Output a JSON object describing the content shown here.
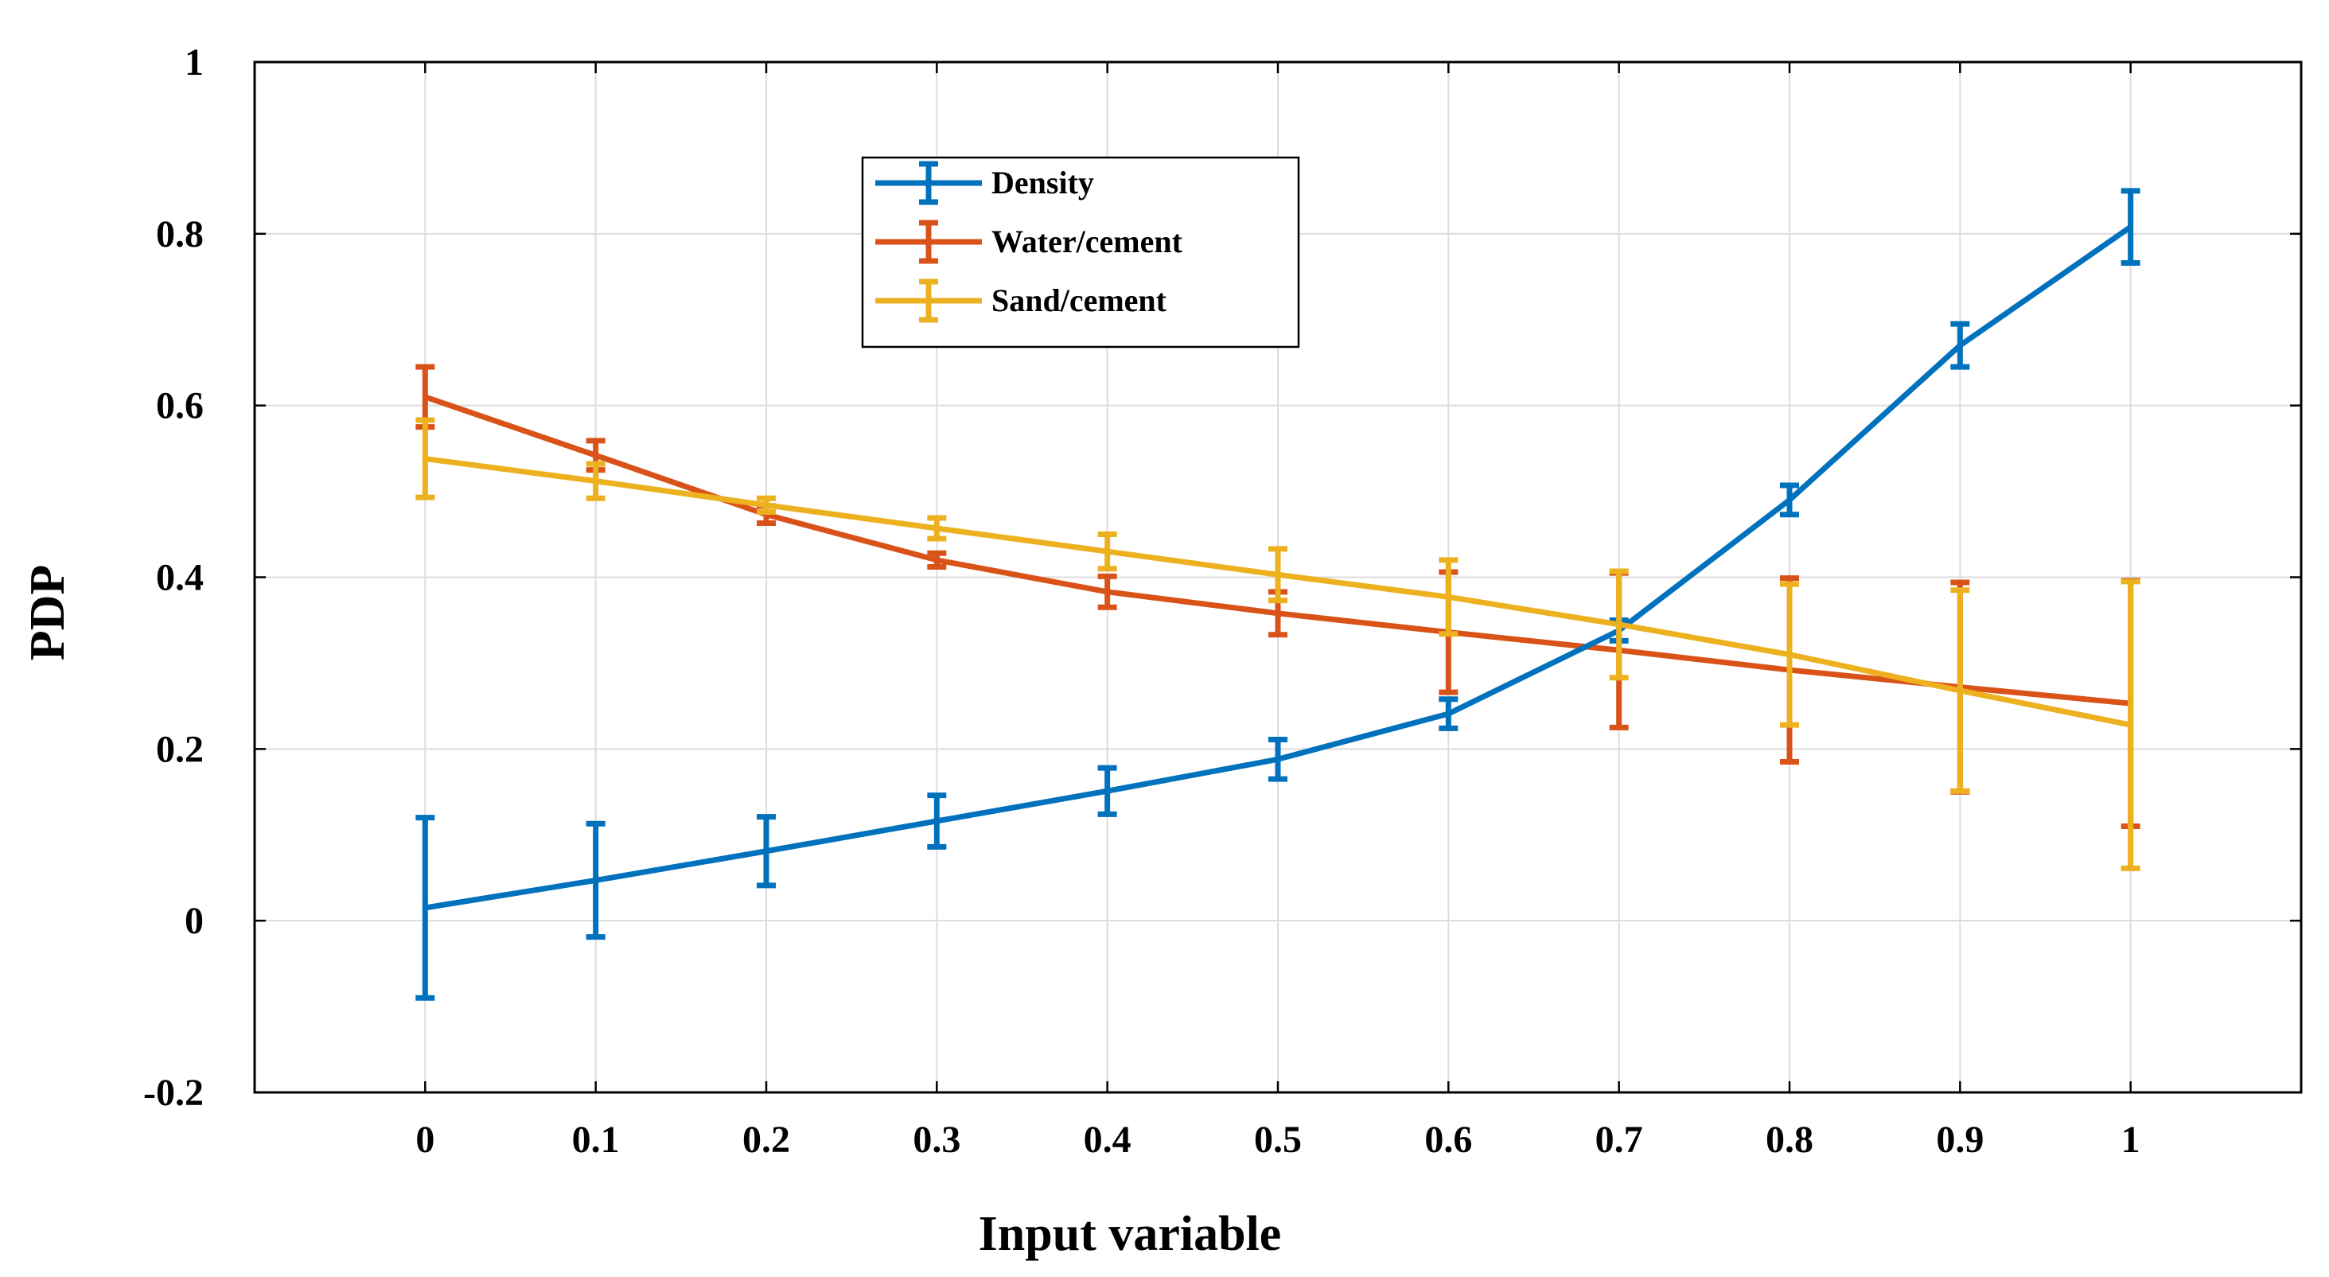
{
  "chart_data": {
    "type": "line",
    "title": "",
    "xlabel": "Input variable",
    "ylabel": "PDP",
    "x": [
      0,
      0.1,
      0.2,
      0.3,
      0.4,
      0.5,
      0.6,
      0.7,
      0.8,
      0.9,
      1
    ],
    "xlim": [
      -0.1,
      1.1
    ],
    "ylim": [
      -0.2,
      1
    ],
    "xticks": [
      0,
      0.1,
      0.2,
      0.3,
      0.4,
      0.5,
      0.6,
      0.7,
      0.8,
      0.9,
      1
    ],
    "xtick_labels": [
      "0",
      "0.1",
      "0.2",
      "0.3",
      "0.4",
      "0.5",
      "0.6",
      "0.7",
      "0.8",
      "0.9",
      "1"
    ],
    "yticks": [
      -0.2,
      0,
      0.2,
      0.4,
      0.6,
      0.8,
      1
    ],
    "ytick_labels": [
      "-0.2",
      "0",
      "0.2",
      "0.4",
      "0.6",
      "0.8",
      "1"
    ],
    "grid": true,
    "legend_position": "upper-center",
    "series": [
      {
        "name": "Density",
        "color": "#0072BD",
        "values": [
          0.015,
          0.047,
          0.081,
          0.116,
          0.151,
          0.188,
          0.241,
          0.338,
          0.49,
          0.67,
          0.808
        ],
        "errors": [
          0.105,
          0.066,
          0.04,
          0.03,
          0.027,
          0.023,
          0.017,
          0.012,
          0.017,
          0.025,
          0.042
        ]
      },
      {
        "name": "Water/cement",
        "color": "#D95319",
        "values": [
          0.61,
          0.542,
          0.473,
          0.42,
          0.383,
          0.358,
          0.336,
          0.315,
          0.292,
          0.272,
          0.253
        ],
        "errors": [
          0.035,
          0.017,
          0.01,
          0.008,
          0.018,
          0.025,
          0.07,
          0.09,
          0.107,
          0.122,
          0.143
        ]
      },
      {
        "name": "Sand/cement",
        "color": "#EDB120",
        "values": [
          0.538,
          0.512,
          0.484,
          0.457,
          0.43,
          0.403,
          0.377,
          0.345,
          0.31,
          0.268,
          0.228
        ],
        "errors": [
          0.045,
          0.02,
          0.008,
          0.012,
          0.02,
          0.03,
          0.043,
          0.062,
          0.082,
          0.117,
          0.167
        ]
      }
    ]
  }
}
